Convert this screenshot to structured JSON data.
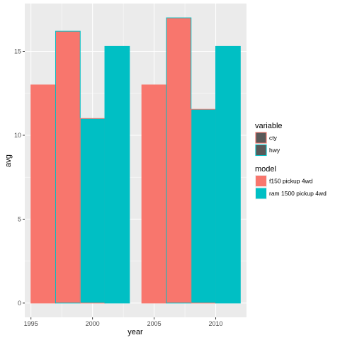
{
  "chart_data": {
    "type": "bar",
    "xlabel": "year",
    "ylabel": "avg",
    "xlim": [
      1994.5,
      2012.5
    ],
    "ylim": [
      -0.85,
      17.85
    ],
    "x_ticks": [
      1995,
      2000,
      2005,
      2010
    ],
    "y_ticks": [
      0,
      5,
      10,
      15
    ],
    "grid": true,
    "legend_position": "right",
    "bars": [
      {
        "model": "f150 pickup 4wd",
        "variable": "cty",
        "x_start": 1995,
        "x_end": 1997,
        "value": 13.0
      },
      {
        "model": "f150 pickup 4wd",
        "variable": "hwy",
        "x_start": 1997,
        "x_end": 1999,
        "value": 16.2
      },
      {
        "model": "ram 1500 pickup 4wd",
        "variable": "cty",
        "x_start": 1999,
        "x_end": 2001,
        "value": 11.0
      },
      {
        "model": "ram 1500 pickup 4wd",
        "variable": "hwy",
        "x_start": 2001,
        "x_end": 2003,
        "value": 15.3
      },
      {
        "model": "f150 pickup 4wd",
        "variable": "cty",
        "x_start": 2004,
        "x_end": 2006,
        "value": 13.0
      },
      {
        "model": "f150 pickup 4wd",
        "variable": "hwy",
        "x_start": 2006,
        "x_end": 2008,
        "value": 17.0
      },
      {
        "model": "ram 1500 pickup 4wd",
        "variable": "cty",
        "x_start": 2008,
        "x_end": 2010,
        "value": 11.55
      },
      {
        "model": "ram 1500 pickup 4wd",
        "variable": "hwy",
        "x_start": 2010,
        "x_end": 2012,
        "value": 15.3
      }
    ],
    "legends": [
      {
        "title": "variable",
        "aesthetic": "outline colour",
        "items": [
          {
            "label": "cty",
            "outline": "#F8766D"
          },
          {
            "label": "hwy",
            "outline": "#00BFC4"
          }
        ]
      },
      {
        "title": "model",
        "aesthetic": "fill",
        "items": [
          {
            "label": "f150 pickup 4wd",
            "fill": "#F8766D"
          },
          {
            "label": "ram 1500 pickup 4wd",
            "fill": "#00BFC4"
          }
        ]
      }
    ],
    "colors": {
      "panel_background": "#EBEBEB",
      "grid": "#FFFFFF",
      "legend_key_fill": "#595959",
      "f150": "#F8766D",
      "ram": "#00BFC4"
    }
  }
}
